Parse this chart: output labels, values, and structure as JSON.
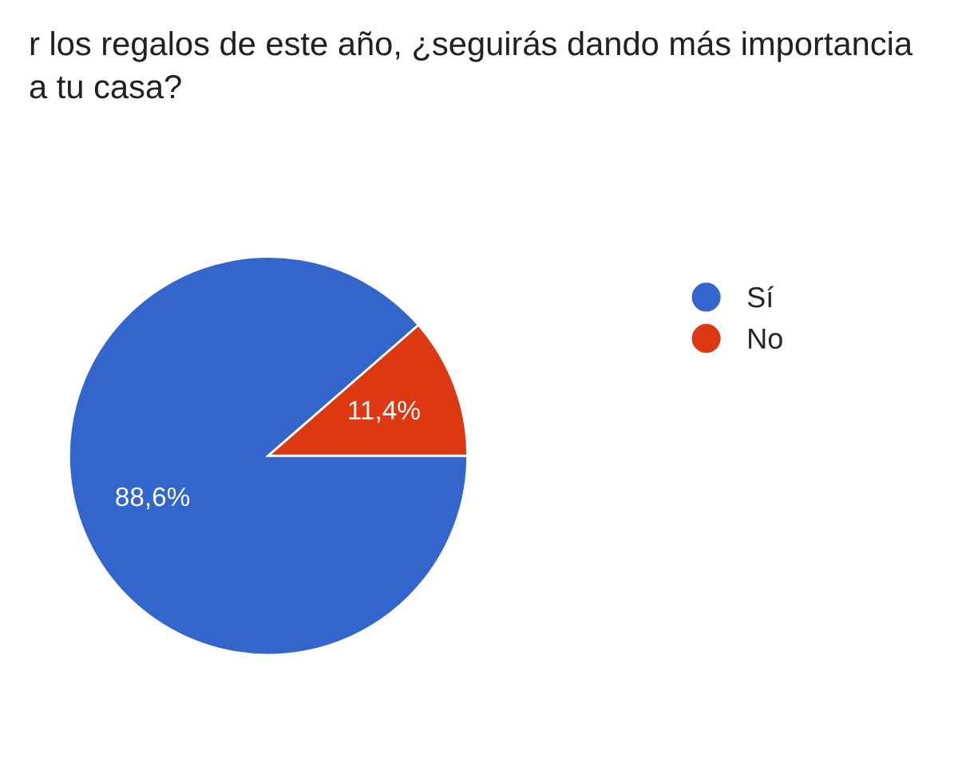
{
  "chart_data": {
    "type": "pie",
    "title": "r los regalos de este año, ¿seguirás dando más importancia\na tu casa?",
    "categories": [
      "Sí",
      "No"
    ],
    "values": [
      88.6,
      11.4
    ],
    "colors": [
      "#3366cc",
      "#dc3912"
    ],
    "value_labels": [
      "88,6%",
      "11,4%"
    ],
    "legend": "right"
  }
}
